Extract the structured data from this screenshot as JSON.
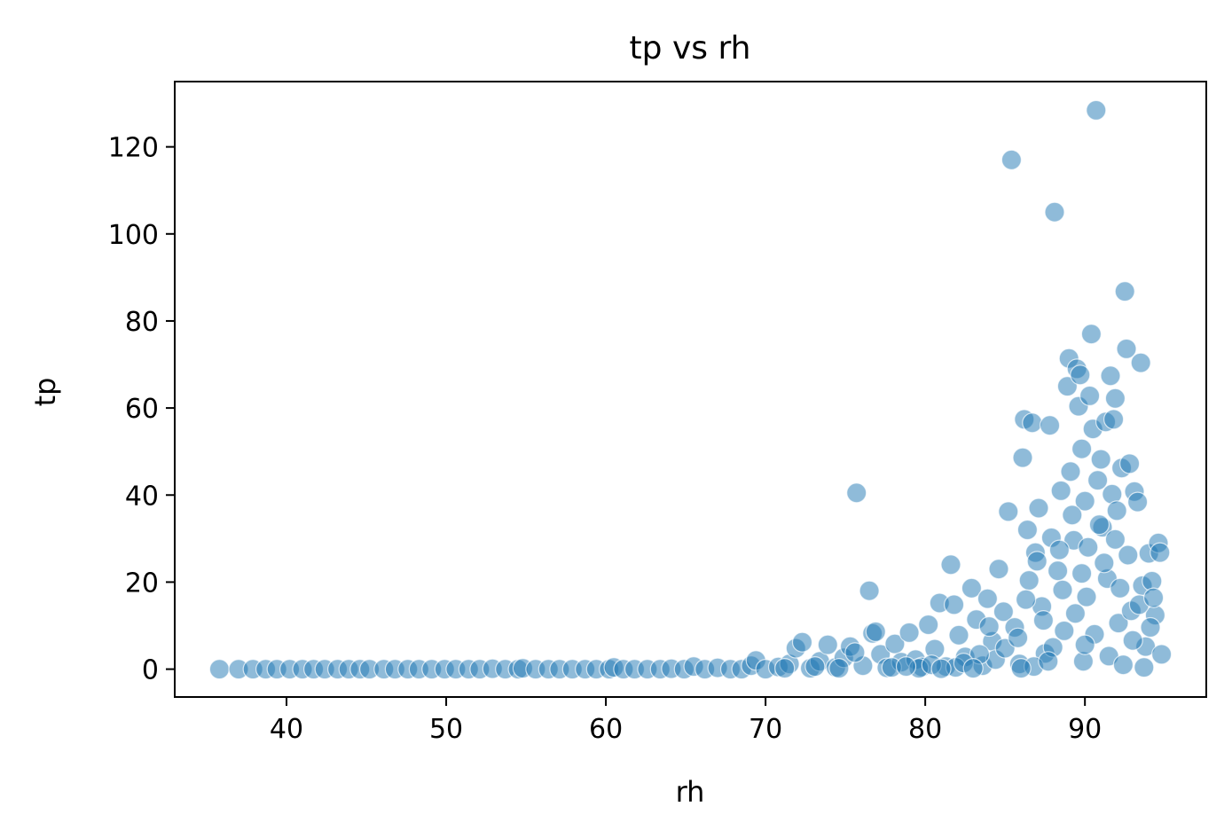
{
  "chart_data": {
    "type": "scatter",
    "title": "tp vs rh",
    "xlabel": "rh",
    "ylabel": "tp",
    "xlim": [
      33,
      97.6
    ],
    "ylim": [
      -6.4,
      135
    ],
    "xticks": [
      40,
      50,
      60,
      70,
      80,
      90
    ],
    "yticks": [
      0,
      20,
      40,
      60,
      80,
      100,
      120
    ],
    "grid": false,
    "legend": "none",
    "point_color": "#1f77b4",
    "point_opacity": 0.5,
    "points": [
      [
        35.8,
        0
      ],
      [
        37.0,
        0
      ],
      [
        37.9,
        0
      ],
      [
        38.7,
        0
      ],
      [
        39.4,
        0
      ],
      [
        40.2,
        0
      ],
      [
        41.0,
        0
      ],
      [
        41.7,
        0
      ],
      [
        42.4,
        0
      ],
      [
        43.2,
        0
      ],
      [
        43.9,
        0
      ],
      [
        44.6,
        0
      ],
      [
        45.2,
        0
      ],
      [
        46.1,
        0
      ],
      [
        46.8,
        0
      ],
      [
        47.6,
        0
      ],
      [
        48.3,
        0
      ],
      [
        49.1,
        0
      ],
      [
        49.9,
        0
      ],
      [
        50.6,
        0
      ],
      [
        51.4,
        0
      ],
      [
        52.1,
        0
      ],
      [
        52.9,
        0.1
      ],
      [
        53.7,
        0
      ],
      [
        54.5,
        0
      ],
      [
        54.8,
        0.2
      ],
      [
        55.6,
        0
      ],
      [
        56.4,
        0
      ],
      [
        57.1,
        0
      ],
      [
        57.9,
        0
      ],
      [
        58.7,
        0
      ],
      [
        59.4,
        0
      ],
      [
        60.2,
        0
      ],
      [
        60.5,
        0.4
      ],
      [
        61.1,
        0
      ],
      [
        61.8,
        0
      ],
      [
        62.6,
        0
      ],
      [
        63.4,
        0
      ],
      [
        64.1,
        0.1
      ],
      [
        64.9,
        0
      ],
      [
        65.5,
        0.6
      ],
      [
        66.2,
        0
      ],
      [
        67.0,
        0.3
      ],
      [
        67.8,
        0
      ],
      [
        68.5,
        0
      ],
      [
        69.1,
        0.8
      ],
      [
        69.4,
        2.0
      ],
      [
        70.0,
        0
      ],
      [
        70.8,
        0.5
      ],
      [
        71.5,
        1.2
      ],
      [
        71.9,
        4.8
      ],
      [
        72.3,
        6.2
      ],
      [
        72.8,
        0.2
      ],
      [
        73.4,
        1.8
      ],
      [
        73.9,
        5.6
      ],
      [
        74.4,
        0.4
      ],
      [
        74.9,
        2.6
      ],
      [
        75.3,
        5.2
      ],
      [
        75.7,
        40.5
      ],
      [
        76.1,
        0.8
      ],
      [
        76.5,
        18.0
      ],
      [
        76.7,
        8.2
      ],
      [
        77.2,
        3.4
      ],
      [
        77.6,
        0.3
      ],
      [
        78.1,
        5.8
      ],
      [
        78.5,
        1.6
      ],
      [
        79.0,
        8.4
      ],
      [
        79.4,
        2.2
      ],
      [
        79.8,
        0.5
      ],
      [
        80.2,
        10.2
      ],
      [
        80.6,
        4.6
      ],
      [
        80.9,
        15.2
      ],
      [
        81.3,
        0.6
      ],
      [
        81.6,
        24.0
      ],
      [
        81.8,
        14.8
      ],
      [
        82.1,
        7.8
      ],
      [
        82.5,
        2.8
      ],
      [
        82.9,
        18.6
      ],
      [
        83.2,
        11.4
      ],
      [
        83.6,
        0.8
      ],
      [
        83.9,
        16.2
      ],
      [
        84.2,
        6.4
      ],
      [
        84.6,
        23.0
      ],
      [
        84.9,
        13.2
      ],
      [
        85.2,
        36.2
      ],
      [
        85.4,
        117.0
      ],
      [
        85.6,
        9.6
      ],
      [
        85.9,
        1.2
      ],
      [
        86.1,
        48.6
      ],
      [
        86.2,
        57.4
      ],
      [
        86.4,
        32.0
      ],
      [
        86.5,
        20.4
      ],
      [
        86.7,
        56.6
      ],
      [
        86.9,
        26.8
      ],
      [
        87.1,
        37.0
      ],
      [
        87.3,
        14.4
      ],
      [
        87.5,
        3.6
      ],
      [
        87.8,
        56.0
      ],
      [
        87.9,
        30.2
      ],
      [
        88.1,
        105.0
      ],
      [
        88.3,
        22.6
      ],
      [
        88.5,
        41.0
      ],
      [
        88.7,
        8.8
      ],
      [
        88.9,
        65.0
      ],
      [
        89.0,
        71.4
      ],
      [
        89.1,
        45.4
      ],
      [
        89.3,
        29.6
      ],
      [
        89.5,
        69.0
      ],
      [
        89.6,
        60.4
      ],
      [
        89.7,
        67.6
      ],
      [
        89.8,
        50.6
      ],
      [
        90.0,
        38.6
      ],
      [
        90.1,
        16.6
      ],
      [
        90.3,
        62.8
      ],
      [
        90.4,
        77.0
      ],
      [
        90.5,
        55.2
      ],
      [
        90.7,
        128.4
      ],
      [
        90.8,
        43.4
      ],
      [
        91.0,
        48.2
      ],
      [
        91.1,
        32.6
      ],
      [
        91.3,
        56.8
      ],
      [
        91.4,
        20.8
      ],
      [
        91.6,
        67.4
      ],
      [
        91.7,
        40.2
      ],
      [
        91.8,
        57.4
      ],
      [
        91.9,
        62.2
      ],
      [
        92.0,
        36.4
      ],
      [
        92.1,
        10.6
      ],
      [
        92.3,
        46.2
      ],
      [
        92.5,
        86.8
      ],
      [
        92.6,
        73.6
      ],
      [
        92.7,
        26.2
      ],
      [
        92.8,
        47.2
      ],
      [
        92.9,
        13.4
      ],
      [
        93.1,
        40.8
      ],
      [
        93.3,
        38.4
      ],
      [
        93.5,
        70.4
      ],
      [
        93.6,
        19.2
      ],
      [
        93.8,
        5.2
      ],
      [
        94.0,
        26.6
      ],
      [
        94.2,
        20.2
      ],
      [
        94.4,
        12.4
      ],
      [
        94.6,
        29.0
      ],
      [
        94.7,
        26.8
      ],
      [
        94.8,
        3.4
      ],
      [
        93.7,
        0.4
      ],
      [
        89.9,
        1.8
      ],
      [
        86.8,
        0.6
      ],
      [
        84.4,
        2.2
      ],
      [
        81.9,
        0.4
      ],
      [
        79.6,
        0.2
      ],
      [
        77.9,
        0.4
      ],
      [
        76.9,
        8.6
      ],
      [
        75.6,
        3.8
      ],
      [
        74.6,
        0.2
      ],
      [
        73.1,
        0.6
      ],
      [
        71.2,
        0.2
      ],
      [
        88.0,
        5.0
      ],
      [
        90.6,
        8.0
      ],
      [
        91.5,
        3.0
      ],
      [
        87.4,
        11.2
      ],
      [
        85.0,
        4.8
      ],
      [
        83.4,
        3.4
      ],
      [
        82.4,
        1.4
      ],
      [
        80.4,
        1.0
      ],
      [
        78.8,
        0.6
      ],
      [
        92.4,
        1.0
      ],
      [
        93.0,
        6.6
      ],
      [
        94.1,
        9.6
      ],
      [
        89.4,
        12.8
      ],
      [
        88.6,
        18.2
      ],
      [
        86.3,
        16.0
      ],
      [
        85.8,
        7.2
      ],
      [
        84.0,
        9.8
      ],
      [
        91.2,
        24.4
      ],
      [
        90.2,
        28.0
      ],
      [
        92.2,
        18.6
      ],
      [
        89.2,
        35.4
      ],
      [
        87.0,
        24.8
      ],
      [
        88.4,
        27.4
      ],
      [
        91.9,
        29.8
      ],
      [
        90.9,
        33.2
      ],
      [
        87.7,
        1.8
      ],
      [
        86.0,
        0.2
      ],
      [
        83.0,
        0.2
      ],
      [
        81.0,
        0.1
      ],
      [
        93.4,
        14.8
      ],
      [
        94.3,
        16.4
      ],
      [
        89.8,
        22.0
      ],
      [
        90.0,
        5.6
      ]
    ]
  }
}
